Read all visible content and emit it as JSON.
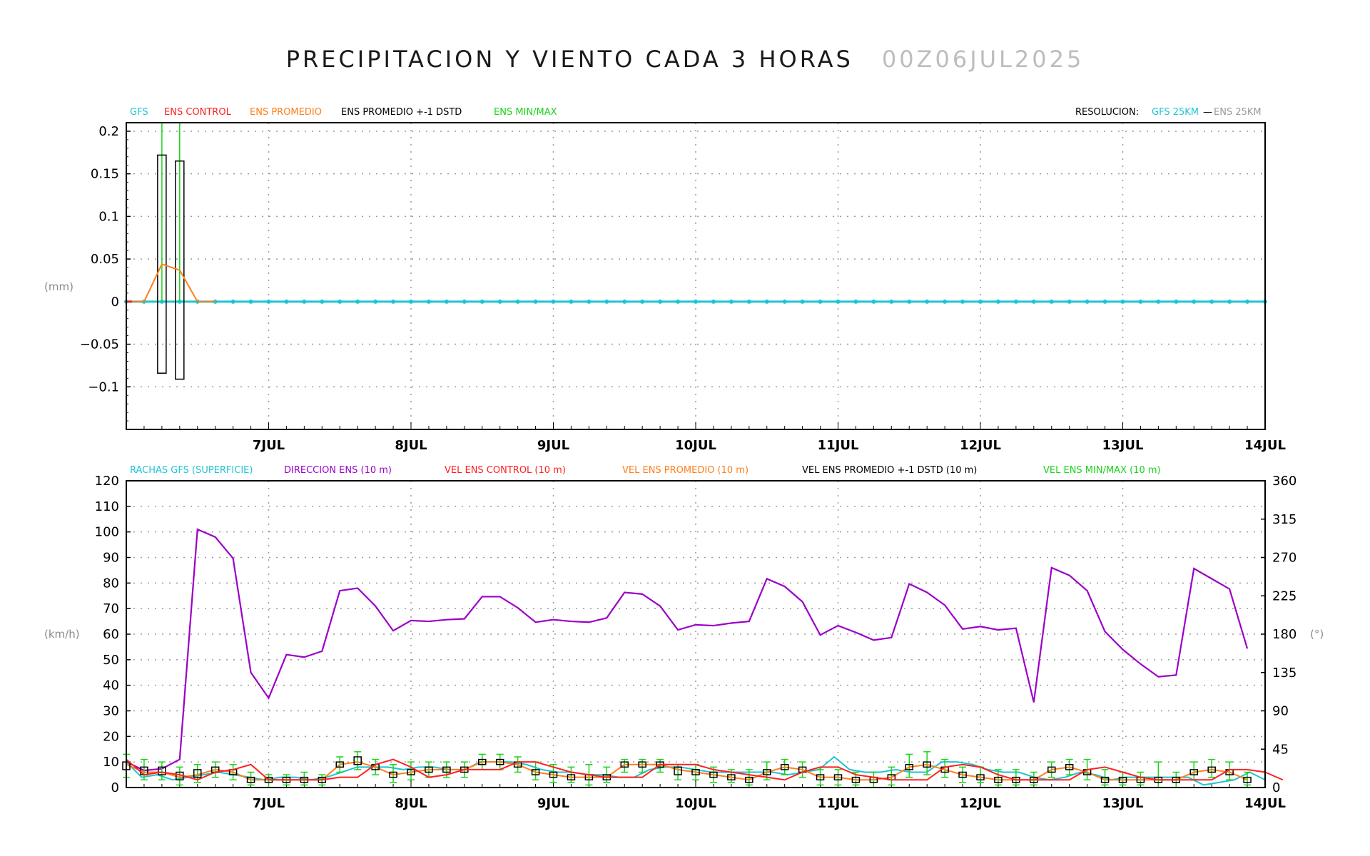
{
  "title": "PRECIPITACION Y VIENTO CADA 3 HORAS",
  "date": "00Z06JUL2025",
  "colors": {
    "gfs": "#1fc4d3",
    "control": "#ff2020",
    "promedio": "#ff7f1a",
    "dstd": "#000000",
    "minmax": "#19d419",
    "direccion": "#9b00c8",
    "grid": "#9a9a9a",
    "resolucion_ens": "#9a9a9a"
  },
  "chart_data": [
    {
      "type": "line",
      "legend": [
        "GFS",
        "ENS CONTROL",
        "ENS PROMEDIO",
        "ENS PROMEDIO +-1 DSTD",
        "ENS MIN/MAX"
      ],
      "resolution": {
        "label": "RESOLUCION:",
        "gfs": "GFS 25KM",
        "sep": "—",
        "ens": "ENS 25KM"
      },
      "ylabel": "(mm)",
      "ylim": [
        -0.15,
        0.21
      ],
      "yticks": [
        "0.2",
        "0.15",
        "0.1",
        "0.05",
        "0",
        "−0.05",
        "−0.1"
      ],
      "ytick_values": [
        0.2,
        0.15,
        0.1,
        0.05,
        0,
        -0.05,
        -0.1
      ],
      "x_step_hours": 3,
      "xlim_days": [
        0,
        8.0
      ],
      "xtick_labels": [
        "7JUL",
        "8JUL",
        "9JUL",
        "10JUL",
        "11JUL",
        "12JUL",
        "13JUL",
        "14JUL"
      ],
      "gfs": "0 at every step 0 – 8 days",
      "control": "0 at every step",
      "promedio": {
        "x_days": [
          0,
          0.125,
          0.25,
          0.375,
          0.5,
          0.625
        ],
        "values": [
          0,
          0,
          0.044,
          0.037,
          0,
          0
        ]
      },
      "dstd_boxes": [
        {
          "x_days": 0.25,
          "low": -0.084,
          "high": 0.172
        },
        {
          "x_days": 0.375,
          "low": -0.091,
          "high": 0.165
        }
      ],
      "minmax": [
        {
          "x_days": 0,
          "low": 0,
          "high": 0.01
        },
        {
          "x_days": 0.25,
          "low": 0,
          "high": 0.21
        },
        {
          "x_days": 0.375,
          "low": 0,
          "high": 0.21
        }
      ]
    },
    {
      "type": "line",
      "legend": [
        "RACHAS GFS (SUPERFICIE)",
        "DIRECCION ENS (10 m)",
        "VEL ENS CONTROL (10 m)",
        "VEL ENS PROMEDIO (10 m)",
        "VEL ENS PROMEDIO +-1 DSTD (10 m)",
        "VEL ENS MIN/MAX (10 m)"
      ],
      "ylabel": "(km/h)",
      "ylabel_right": "(°)",
      "ylim": [
        0,
        120
      ],
      "yticks": [
        "120",
        "110",
        "100",
        "90",
        "80",
        "70",
        "60",
        "50",
        "40",
        "30",
        "20",
        "10",
        "0"
      ],
      "ylim_right": [
        0,
        360
      ],
      "yticks_right": [
        "360",
        "315",
        "270",
        "225",
        "180",
        "135",
        "90",
        "45",
        "0"
      ],
      "x_step_hours": 6,
      "xlim_days": [
        0,
        8.0
      ],
      "xtick_labels": [
        "7JUL",
        "8JUL",
        "9JUL",
        "10JUL",
        "11JUL",
        "12JUL",
        "13JUL",
        "14JUL"
      ],
      "direccion": [
        30,
        20,
        22,
        33,
        303,
        294,
        269,
        135,
        105,
        156,
        153,
        160,
        231,
        234,
        213,
        184,
        196,
        195,
        197,
        198,
        224,
        224,
        211,
        194,
        197,
        195,
        194,
        199,
        229,
        227,
        213,
        185,
        191,
        190,
        193,
        195,
        245,
        236,
        218,
        179,
        190,
        182,
        173,
        176,
        239,
        229,
        214,
        186,
        189,
        185,
        187,
        100,
        258,
        249,
        231,
        183,
        162,
        145,
        130,
        132,
        257,
        245,
        233,
        163
      ],
      "rachas_gfs": [
        10,
        4,
        5,
        3,
        4,
        5,
        6,
        5,
        4,
        3,
        4,
        4,
        3,
        4,
        6,
        8,
        8,
        8,
        7,
        8,
        8,
        7,
        7,
        10,
        10,
        10,
        9,
        7,
        6,
        6,
        5,
        5,
        4,
        4,
        7,
        8,
        8,
        7,
        6,
        6,
        6,
        6,
        6,
        5,
        6,
        7,
        12,
        7,
        6,
        6,
        7,
        6,
        6,
        10,
        10,
        9,
        7,
        6,
        6,
        4,
        3,
        4,
        6,
        5,
        3,
        4,
        4,
        4,
        4,
        4,
        1,
        2,
        3,
        6,
        3
      ],
      "control": [
        11,
        5,
        6,
        5,
        3,
        6,
        7,
        9,
        3,
        3,
        3,
        3,
        4,
        4,
        9,
        11,
        8,
        4,
        5,
        7,
        7,
        7,
        10,
        10,
        8,
        6,
        5,
        4,
        4,
        4,
        9,
        9,
        9,
        7,
        6,
        5,
        4,
        3,
        6,
        8,
        8,
        5,
        4,
        3,
        3,
        3,
        8,
        9,
        8,
        5,
        3,
        3,
        3,
        3,
        7,
        8,
        6,
        4,
        3,
        3,
        3,
        3,
        7,
        7,
        6,
        3
      ],
      "promedio": [
        9,
        6,
        6,
        4,
        5,
        7,
        6,
        3,
        3,
        3,
        3,
        3,
        9,
        10,
        8,
        5,
        6,
        7,
        7,
        7,
        10,
        10,
        9,
        6,
        5,
        4,
        4,
        4,
        9,
        9,
        9,
        7,
        6,
        5,
        4,
        3,
        6,
        8,
        7,
        4,
        4,
        3,
        3,
        4,
        8,
        9,
        7,
        5,
        4,
        3,
        3,
        3,
        7,
        8,
        6,
        3,
        3,
        3,
        3,
        3,
        6,
        7,
        6,
        3
      ],
      "box_low": [
        7,
        5,
        5,
        3,
        4,
        6,
        5,
        2,
        2,
        2,
        2,
        2,
        8,
        9,
        7,
        4,
        5,
        6,
        6,
        6,
        9,
        9,
        8,
        5,
        4,
        3,
        3,
        3,
        8,
        8,
        8,
        5,
        5,
        4,
        3,
        2,
        5,
        7,
        6,
        3,
        3,
        2,
        2,
        3,
        7,
        8,
        6,
        4,
        3,
        2,
        2,
        2,
        6,
        7,
        5,
        2,
        2,
        2,
        2,
        2,
        5,
        6,
        5,
        2
      ],
      "box_high": [
        10,
        8,
        8,
        6,
        7,
        8,
        7,
        4,
        4,
        4,
        4,
        4,
        10,
        12,
        9,
        6,
        7,
        8,
        8,
        8,
        11,
        11,
        10,
        7,
        6,
        5,
        5,
        5,
        10,
        10,
        10,
        8,
        7,
        6,
        5,
        4,
        7,
        9,
        8,
        5,
        5,
        4,
        4,
        5,
        9,
        10,
        8,
        6,
        5,
        4,
        4,
        4,
        8,
        9,
        7,
        4,
        4,
        4,
        4,
        4,
        7,
        8,
        7,
        4
      ],
      "minmax_low": [
        4,
        3,
        3,
        1,
        2,
        4,
        3,
        1,
        0,
        1,
        1,
        1,
        6,
        7,
        5,
        2,
        3,
        4,
        4,
        4,
        7,
        7,
        6,
        3,
        2,
        2,
        1,
        2,
        6,
        6,
        6,
        3,
        3,
        2,
        2,
        1,
        3,
        5,
        4,
        1,
        1,
        1,
        0,
        1,
        4,
        5,
        4,
        2,
        2,
        1,
        1,
        1,
        4,
        5,
        3,
        1,
        1,
        1,
        0,
        0,
        3,
        4,
        3,
        1
      ],
      "minmax_high": [
        13,
        11,
        10,
        8,
        9,
        10,
        9,
        6,
        5,
        5,
        6,
        5,
        12,
        14,
        11,
        9,
        10,
        10,
        10,
        10,
        13,
        13,
        12,
        10,
        9,
        8,
        9,
        8,
        11,
        11,
        11,
        9,
        9,
        8,
        7,
        7,
        10,
        11,
        10,
        7,
        7,
        6,
        6,
        8,
        13,
        14,
        11,
        8,
        8,
        7,
        7,
        6,
        10,
        11,
        11,
        7,
        6,
        6,
        10,
        6,
        10,
        11,
        10,
        6
      ]
    }
  ]
}
